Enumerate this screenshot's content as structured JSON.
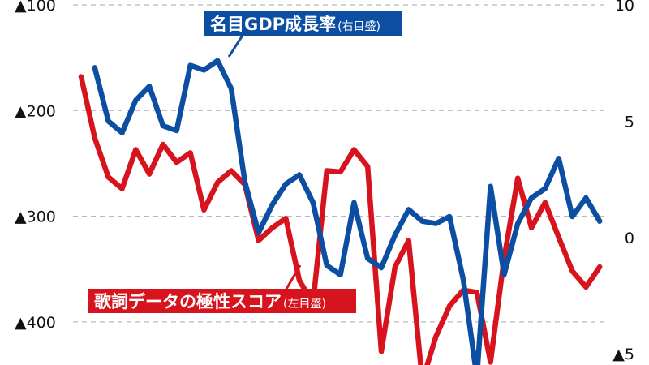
{
  "chart_data": {
    "type": "line",
    "colors": {
      "lyrics": "#d7141e",
      "gdp": "#0c4ea2",
      "grid": "#b8b8b8"
    },
    "left_axis": {
      "range": [
        -100,
        -450
      ],
      "ticks": [
        {
          "value": -100,
          "label": "▲100"
        },
        {
          "value": -200,
          "label": "▲200"
        },
        {
          "value": -300,
          "label": "▲300"
        },
        {
          "value": -400,
          "label": "▲400"
        }
      ]
    },
    "right_axis": {
      "range": [
        10,
        -5.9
      ],
      "ticks": [
        {
          "value": 10,
          "label": "10"
        },
        {
          "value": 5,
          "label": "5"
        },
        {
          "value": 0,
          "label": "0"
        },
        {
          "value": -5,
          "label": "▲5"
        }
      ]
    },
    "grid": true,
    "series": [
      {
        "id": "lyrics",
        "name": "歌詞データの極性スコア",
        "axis_note": "(左目盛)",
        "axis": "left",
        "values": [
          -168,
          -226,
          -263,
          -274,
          -237,
          -260,
          -232,
          -249,
          -240,
          -294,
          -268,
          -257,
          -270,
          -323,
          -311,
          -302,
          -361,
          -382,
          -257,
          -258,
          -237,
          -253,
          -428,
          -348,
          -323,
          -456,
          -414,
          -385,
          -370,
          -372,
          -438,
          -340,
          -264,
          -311,
          -287,
          -320,
          -352,
          -367,
          -348
        ]
      },
      {
        "id": "gdp",
        "name": "名目GDP成長率",
        "axis_note": "(右目盛)",
        "axis": "right",
        "values": [
          7.3,
          5.0,
          4.5,
          5.9,
          6.5,
          4.8,
          4.6,
          7.4,
          7.2,
          7.6,
          6.4,
          2.4,
          0.2,
          1.4,
          2.3,
          2.7,
          1.5,
          -1.2,
          -1.6,
          1.5,
          -0.9,
          -1.3,
          0.1,
          1.2,
          0.7,
          0.6,
          0.9,
          -1.8,
          -6.0,
          2.2,
          -1.6,
          0.6,
          1.7,
          2.1,
          3.4,
          0.9,
          1.7,
          0.7
        ]
      }
    ]
  }
}
